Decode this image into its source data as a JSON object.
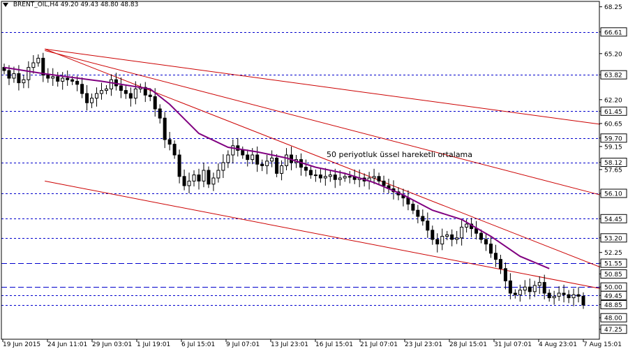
{
  "header": {
    "symbol": "BRENT_OIL,H4",
    "ohlc": "49.20 49.43 48.80 48.83"
  },
  "annotation": "50 periyotluk üssel hareketli ortalama",
  "colors": {
    "background": "#ffffff",
    "candle": "#000000",
    "ema": "#800080",
    "trendline": "#cc0000",
    "level_line": "#0000cc",
    "price_label_bg": "#ffffff",
    "axis": "#000000"
  },
  "chart_data": {
    "type": "candlestick",
    "title": "",
    "xlabel": "",
    "ylabel": "",
    "ylim": [
      46.6,
      68.6
    ],
    "x_tick_labels": [
      "19 Jun 2015",
      "24 Jun 11:01",
      "29 Jun 03:01",
      "1 Jul 19:01",
      "6 Jul 15:01",
      "9 Jul 07:01",
      "13 Jul 23:01",
      "16 Jul 15:01",
      "21 Jul 07:01",
      "23 Jul 23:01",
      "28 Jul 15:01",
      "31 Jul 07:01",
      "4 Aug 23:01",
      "7 Aug 15:01"
    ],
    "y_axis_labels": [
      "68.25",
      "66.61",
      "65.20",
      "63.82",
      "62.20",
      "61.45",
      "60.65",
      "59.70",
      "59.15",
      "58.12",
      "57.65",
      "56.10",
      "54.45",
      "53.20",
      "52.25",
      "51.55",
      "50.85",
      "50.00",
      "49.45",
      "48.85",
      "48.00",
      "47.25"
    ],
    "y_axis_values": [
      68.25,
      66.61,
      65.2,
      63.82,
      62.2,
      61.45,
      60.65,
      59.7,
      59.15,
      58.12,
      57.65,
      56.1,
      54.45,
      53.2,
      52.25,
      51.55,
      50.85,
      50.0,
      49.45,
      48.85,
      48.0,
      47.25
    ],
    "boxed_levels": [
      66.61,
      63.82,
      61.45,
      59.7,
      58.12,
      56.1,
      54.45,
      53.2,
      51.55,
      50.85,
      50.0,
      49.45,
      48.85,
      48.0,
      47.25
    ],
    "horizontal_levels": [
      66.61,
      63.82,
      61.45,
      59.7,
      58.12,
      56.1,
      54.45,
      53.2,
      51.55,
      50.0,
      49.45,
      48.85
    ],
    "highlight_levels": [
      51.55,
      50.0
    ],
    "close_series": [
      64.1,
      63.6,
      63.9,
      63.3,
      63.5,
      64.3,
      64.6,
      64.9,
      63.8,
      63.6,
      63.7,
      63.4,
      63.6,
      63.5,
      63.4,
      63.2,
      62.6,
      62.0,
      62.3,
      62.6,
      62.8,
      62.9,
      63.5,
      63.1,
      62.8,
      62.6,
      62.3,
      62.9,
      63.0,
      62.5,
      62.4,
      61.6,
      61.0,
      59.6,
      59.3,
      58.6,
      57.2,
      56.6,
      56.9,
      57.3,
      56.9,
      57.6,
      56.7,
      57.1,
      57.6,
      58.1,
      58.6,
      59.2,
      58.9,
      58.6,
      58.3,
      58.6,
      58.0,
      57.9,
      58.2,
      58.4,
      57.4,
      57.9,
      58.6,
      58.1,
      58.3,
      57.8,
      57.6,
      57.3,
      57.3,
      57.1,
      57.2,
      57.3,
      57.0,
      57.1,
      57.2,
      57.2,
      57.0,
      57.1,
      56.9,
      57.1,
      57.2,
      56.9,
      56.6,
      56.4,
      56.2,
      56.0,
      55.8,
      55.4,
      55.0,
      54.6,
      54.3,
      53.7,
      53.1,
      52.8,
      53.3,
      53.4,
      53.1,
      53.2,
      53.9,
      54.1,
      53.8,
      53.5,
      53.1,
      52.8,
      52.2,
      51.8,
      51.2,
      50.4,
      49.6,
      49.5,
      49.8,
      50.0,
      49.7,
      50.1,
      50.3,
      49.6,
      49.3,
      49.4,
      49.6,
      49.5,
      49.3,
      49.5,
      49.4,
      48.83
    ],
    "ema_50": {
      "name": "50 periyotluk üssel hareketli ortalama",
      "values_at_bars": [
        [
          0,
          64.3
        ],
        [
          8,
          63.9
        ],
        [
          20,
          63.4
        ],
        [
          30,
          62.9
        ],
        [
          34,
          61.9
        ],
        [
          40,
          60.0
        ],
        [
          46,
          59.1
        ],
        [
          52,
          58.8
        ],
        [
          58,
          58.4
        ],
        [
          64,
          57.8
        ],
        [
          70,
          57.4
        ],
        [
          76,
          56.8
        ],
        [
          82,
          56.0
        ],
        [
          88,
          55.0
        ],
        [
          94,
          54.4
        ],
        [
          100,
          53.3
        ],
        [
          106,
          52.0
        ],
        [
          112,
          51.2
        ]
      ]
    },
    "trendlines": [
      {
        "from": [
          64.2,
          65.5
        ],
        "to": [
          860,
          60.6
        ]
      },
      {
        "from": [
          64.2,
          65.4
        ],
        "to": [
          860,
          56.0
        ]
      },
      {
        "from": [
          64.2,
          65.5
        ],
        "to": [
          860,
          51.3
        ]
      },
      {
        "from": [
          64.2,
          56.9
        ],
        "to": [
          860,
          49.9
        ]
      }
    ]
  }
}
